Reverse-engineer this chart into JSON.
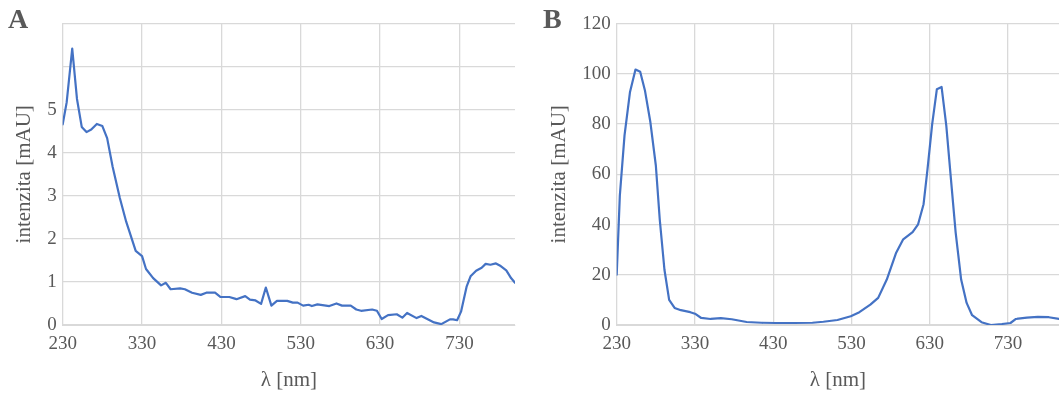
{
  "chart_data": [
    {
      "type": "line",
      "title": "A",
      "xlabel": "λ [nm]",
      "ylabel": "intenzita [mAU]",
      "xlim": [
        230,
        800
      ],
      "xticks": [
        230,
        330,
        430,
        530,
        630,
        730
      ],
      "ylim": [
        0,
        7
      ],
      "yticks": [
        0,
        1,
        2,
        3,
        4,
        5,
        {
          "value": 6,
          "label": null
        },
        {
          "value": 7,
          "label": null
        }
      ],
      "grid": true,
      "marker": "none",
      "line_style": "solid",
      "series": [
        {
          "color": "#4472c4",
          "x": [
            230,
            235,
            242,
            248,
            254,
            260,
            266,
            273,
            280,
            286,
            293,
            302,
            310,
            322,
            330,
            335,
            344,
            354,
            360,
            366,
            378,
            384,
            393,
            404,
            411,
            422,
            429,
            440,
            449,
            460,
            466,
            473,
            480,
            486,
            493,
            500,
            513,
            520,
            526,
            533,
            540,
            544,
            551,
            566,
            575,
            582,
            593,
            600,
            606,
            620,
            626,
            632,
            640,
            651,
            658,
            664,
            676,
            682,
            698,
            707,
            718,
            722,
            727,
            732,
            739,
            744,
            751,
            758,
            763,
            769,
            776,
            782,
            789,
            795,
            800
          ],
          "values": [
            4.66,
            5.17,
            6.42,
            5.25,
            4.6,
            4.48,
            4.54,
            4.67,
            4.62,
            4.34,
            3.67,
            2.95,
            2.4,
            1.72,
            1.6,
            1.3,
            1.09,
            0.92,
            0.98,
            0.83,
            0.85,
            0.83,
            0.75,
            0.7,
            0.75,
            0.75,
            0.65,
            0.65,
            0.6,
            0.67,
            0.59,
            0.57,
            0.49,
            0.87,
            0.45,
            0.56,
            0.56,
            0.52,
            0.52,
            0.45,
            0.47,
            0.44,
            0.48,
            0.44,
            0.5,
            0.45,
            0.45,
            0.36,
            0.33,
            0.36,
            0.33,
            0.14,
            0.23,
            0.25,
            0.17,
            0.28,
            0.16,
            0.21,
            0.06,
            0.02,
            0.13,
            0.13,
            0.11,
            0.31,
            0.89,
            1.13,
            1.26,
            1.33,
            1.42,
            1.4,
            1.43,
            1.37,
            1.27,
            1.09,
            0.98
          ]
        }
      ]
    },
    {
      "type": "line",
      "title": "B",
      "xlabel": "λ [nm]",
      "ylabel": "intenzita [mAU]",
      "xlim": [
        230,
        795
      ],
      "xticks": [
        230,
        330,
        430,
        530,
        630,
        730
      ],
      "ylim": [
        0,
        120
      ],
      "yticks": [
        0,
        20,
        40,
        60,
        80,
        100,
        120
      ],
      "grid": true,
      "marker": "none",
      "line_style": "solid",
      "series": [
        {
          "color": "#4472c4",
          "x": [
            230,
            234,
            240,
            247,
            254,
            260,
            266,
            273,
            280,
            285,
            291,
            297,
            304,
            312,
            324,
            330,
            338,
            350,
            363,
            377,
            396,
            415,
            433,
            457,
            480,
            494,
            512,
            529,
            540,
            554,
            564,
            575,
            587,
            596,
            608,
            615,
            622,
            627,
            633,
            639,
            645,
            651,
            657,
            663,
            670,
            677,
            684,
            696,
            708,
            722,
            733,
            740,
            754,
            768,
            782,
            795
          ],
          "values": [
            20,
            51.5,
            75.5,
            92.8,
            101.7,
            100.8,
            93.5,
            80.8,
            63.5,
            42,
            22,
            10,
            6.8,
            5.9,
            5.1,
            4.5,
            2.8,
            2.4,
            2.7,
            2.3,
            1.2,
            0.9,
            0.8,
            0.8,
            0.9,
            1.3,
            2,
            3.5,
            5.1,
            8.1,
            10.8,
            18.1,
            28.8,
            34.1,
            37,
            40.1,
            48.1,
            62,
            80,
            93.9,
            94.8,
            79.5,
            58,
            36.8,
            18.1,
            8.8,
            3.9,
            1.1,
            0,
            0.4,
            0.8,
            2.4,
            2.9,
            3.2,
            3.1,
            2.4
          ]
        }
      ]
    }
  ]
}
